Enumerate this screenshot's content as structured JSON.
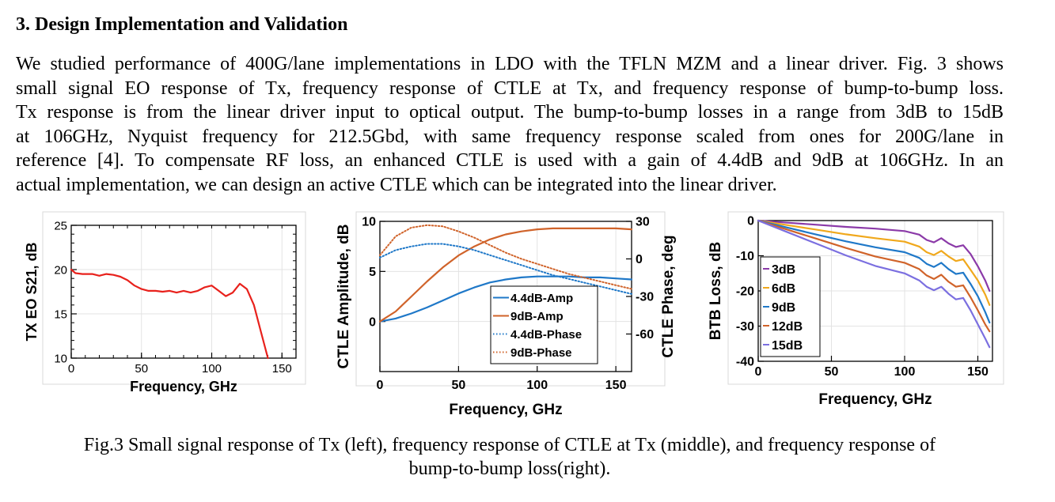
{
  "section": {
    "heading": "3.  Design Implementation and Validation"
  },
  "paragraph_lines": [
    "We studied performance of 400G/lane implementations in LDO with the TFLN MZM and a linear driver. Fig. 3 shows",
    "small signal EO response of Tx, frequency response of CTLE at Tx, and frequency response of bump-to-bump loss.",
    "Tx response is from the linear driver input to optical output. The bump-to-bump losses in a range from 3dB to 15dB",
    "at 106GHz, Nyquist frequency for 212.5Gbd, with same frequency response scaled from ones for 200G/lane in",
    "reference [4]. To compensate RF loss, an enhanced CTLE is used with a gain of 4.4dB and 9dB at 106GHz. In an",
    "actual implementation, we can design an active CTLE which can be integrated into the linear driver."
  ],
  "caption_lines": [
    "Fig.3 Small signal response of Tx (left), frequency response of CTLE at Tx (middle), and frequency response of",
    "bump-to-bump loss(right)."
  ],
  "chart_data": [
    {
      "type": "line",
      "title": "",
      "xlabel": "Frequency, GHz",
      "ylabel": "TX EO S21, dB",
      "xlim": [
        0,
        160
      ],
      "ylim": [
        10,
        25
      ],
      "xticks": [
        "0",
        "50",
        "100",
        "150"
      ],
      "yticks": [
        "10",
        "15",
        "20",
        "25"
      ],
      "grid": true,
      "series": [
        {
          "name": "Tx EO",
          "color": "#e8211c",
          "x": [
            0,
            3,
            8,
            15,
            20,
            25,
            30,
            35,
            40,
            45,
            50,
            55,
            60,
            65,
            70,
            75,
            80,
            85,
            90,
            95,
            100,
            105,
            110,
            115,
            120,
            125,
            130,
            135,
            140
          ],
          "y": [
            20,
            19.6,
            19.5,
            19.5,
            19.3,
            19.5,
            19.4,
            19.2,
            18.8,
            18.2,
            17.8,
            17.6,
            17.6,
            17.5,
            17.6,
            17.4,
            17.6,
            17.4,
            17.6,
            18.0,
            18.2,
            17.6,
            17.0,
            17.4,
            18.4,
            17.8,
            16.0,
            13.0,
            10.0
          ]
        }
      ]
    },
    {
      "type": "line",
      "title": "",
      "xlabel": "Frequency, GHz",
      "ylabel": "CTLE Amplitude, dB",
      "y2label": "CTLE Phase, deg",
      "xlim": [
        0,
        160
      ],
      "ylim": [
        -5,
        10
      ],
      "y2lim": [
        -90,
        30
      ],
      "xticks": [
        "0",
        "50",
        "100",
        "150"
      ],
      "yticks": [
        "0",
        "5",
        "10"
      ],
      "y2ticks": [
        "30",
        "0",
        "-30",
        "-60"
      ],
      "grid": true,
      "legend": "bottom-right",
      "series": [
        {
          "name": "4.4dB-Amp",
          "color": "#1f78c8",
          "style": "solid",
          "axis": "left",
          "x": [
            0,
            10,
            20,
            30,
            40,
            50,
            60,
            70,
            80,
            90,
            100,
            110,
            120,
            130,
            140,
            150,
            160
          ],
          "y": [
            0,
            0.3,
            0.8,
            1.4,
            2.1,
            2.8,
            3.4,
            3.9,
            4.2,
            4.4,
            4.5,
            4.5,
            4.5,
            4.4,
            4.4,
            4.3,
            4.2
          ]
        },
        {
          "name": "9dB-Amp",
          "color": "#d0632a",
          "style": "solid",
          "axis": "left",
          "x": [
            0,
            10,
            20,
            30,
            40,
            50,
            60,
            70,
            80,
            90,
            100,
            110,
            120,
            130,
            140,
            150,
            160
          ],
          "y": [
            0,
            1.0,
            2.5,
            4.0,
            5.4,
            6.6,
            7.5,
            8.2,
            8.7,
            9.0,
            9.2,
            9.3,
            9.3,
            9.3,
            9.3,
            9.3,
            9.2
          ]
        },
        {
          "name": "4.4dB-Phase",
          "color": "#1f78c8",
          "style": "dotted",
          "axis": "right",
          "x": [
            0,
            10,
            20,
            30,
            40,
            50,
            60,
            70,
            80,
            90,
            100,
            110,
            120,
            130,
            140,
            150,
            160
          ],
          "y": [
            1,
            7,
            10,
            12,
            12,
            10,
            7,
            3,
            -1,
            -5,
            -9,
            -13,
            -16,
            -19,
            -22,
            -25,
            -28
          ]
        },
        {
          "name": "9dB-Phase",
          "color": "#d0632a",
          "style": "dotted",
          "axis": "right",
          "x": [
            0,
            10,
            20,
            30,
            40,
            50,
            60,
            70,
            80,
            90,
            100,
            110,
            120,
            130,
            140,
            150,
            160
          ],
          "y": [
            3,
            18,
            25,
            27,
            26,
            22,
            17,
            11,
            5,
            0,
            -4,
            -8,
            -12,
            -15,
            -18,
            -21,
            -24
          ]
        }
      ]
    },
    {
      "type": "line",
      "title": "",
      "xlabel": "Frequency, GHz",
      "ylabel": "BTB Loss, dB",
      "xlim": [
        0,
        160
      ],
      "ylim": [
        -40,
        0
      ],
      "xticks": [
        "0",
        "50",
        "100",
        "150"
      ],
      "yticks": [
        "0",
        "-10",
        "-20",
        "-30",
        "-40"
      ],
      "grid": true,
      "legend": "left",
      "series": [
        {
          "name": "3dB",
          "color": "#8b3aa8",
          "x": [
            0,
            20,
            40,
            60,
            80,
            100,
            110,
            115,
            120,
            125,
            130,
            135,
            140,
            145,
            150,
            155,
            158
          ],
          "y": [
            0,
            -0.6,
            -1.2,
            -1.8,
            -2.3,
            -3.0,
            -4.0,
            -5.5,
            -6.2,
            -5.0,
            -6.5,
            -7.5,
            -7.0,
            -9.5,
            -13.0,
            -17.0,
            -20.0
          ]
        },
        {
          "name": "6dB",
          "color": "#f0a81c",
          "x": [
            0,
            20,
            40,
            60,
            80,
            100,
            110,
            115,
            120,
            125,
            130,
            135,
            140,
            145,
            150,
            155,
            158
          ],
          "y": [
            0,
            -1.3,
            -2.6,
            -3.9,
            -5.0,
            -6.0,
            -7.4,
            -9.0,
            -9.8,
            -8.6,
            -10.2,
            -11.5,
            -11.0,
            -14.0,
            -17.0,
            -21.0,
            -24.0
          ]
        },
        {
          "name": "9dB",
          "color": "#1f78c8",
          "x": [
            0,
            20,
            40,
            60,
            80,
            100,
            110,
            115,
            120,
            125,
            130,
            135,
            140,
            145,
            150,
            155,
            158
          ],
          "y": [
            0,
            -2.0,
            -4.0,
            -5.9,
            -7.6,
            -9.0,
            -10.6,
            -12.3,
            -13.2,
            -12.0,
            -13.8,
            -15.2,
            -14.8,
            -18.0,
            -21.5,
            -26.0,
            -29.0
          ]
        },
        {
          "name": "12dB",
          "color": "#d0632a",
          "x": [
            0,
            20,
            40,
            60,
            80,
            100,
            110,
            115,
            120,
            125,
            130,
            135,
            140,
            145,
            150,
            155,
            158
          ],
          "y": [
            0,
            -2.6,
            -5.2,
            -7.8,
            -10.2,
            -12.0,
            -13.8,
            -15.6,
            -16.6,
            -15.4,
            -17.4,
            -18.8,
            -18.4,
            -21.8,
            -25.5,
            -29.5,
            -31.5
          ]
        },
        {
          "name": "15dB",
          "color": "#7b6fe0",
          "x": [
            0,
            20,
            40,
            60,
            80,
            100,
            110,
            115,
            120,
            125,
            130,
            135,
            140,
            145,
            150,
            155,
            158
          ],
          "y": [
            0,
            -3.3,
            -6.6,
            -9.9,
            -12.9,
            -15.0,
            -17.0,
            -18.8,
            -19.8,
            -18.8,
            -20.8,
            -22.4,
            -22.0,
            -25.5,
            -29.5,
            -33.5,
            -36.0
          ]
        }
      ]
    }
  ]
}
